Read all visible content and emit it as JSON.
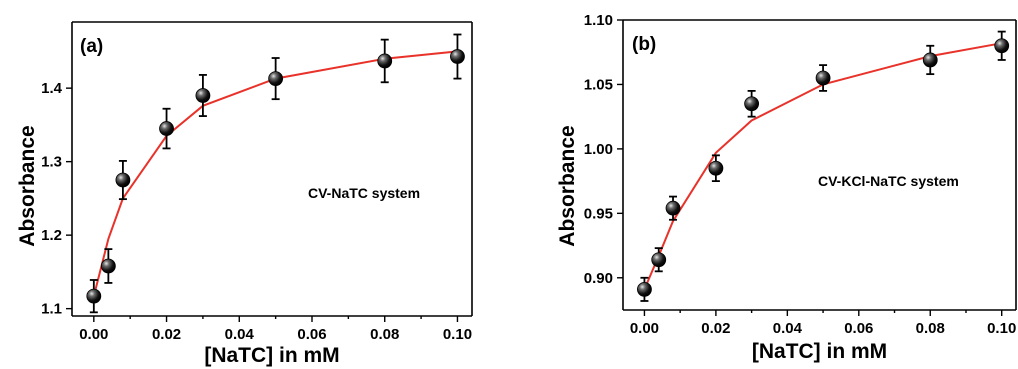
{
  "chart_data": [
    {
      "type": "scatter",
      "panel_label": "(a)",
      "annotation": "CV-NaTC system",
      "xlabel": "[NaTC] in mM",
      "ylabel": "Absorbance",
      "xlim": [
        -0.006,
        0.104
      ],
      "ylim": [
        1.09,
        1.49
      ],
      "xticks": [
        0.0,
        0.02,
        0.04,
        0.06,
        0.08,
        0.1
      ],
      "xtick_labels": [
        "0.00",
        "0.02",
        "0.04",
        "0.06",
        "0.08",
        "0.10"
      ],
      "yticks": [
        1.1,
        1.2,
        1.3,
        1.4
      ],
      "ytick_labels": [
        "1.1",
        "1.2",
        "1.3",
        "1.4"
      ],
      "grid": false,
      "fit_color": "#e8322a",
      "series": [
        {
          "x": [
            0.0,
            0.004,
            0.008,
            0.02,
            0.03,
            0.05,
            0.08,
            0.1
          ],
          "y": [
            1.117,
            1.158,
            1.275,
            1.345,
            1.39,
            1.413,
            1.437,
            1.443
          ],
          "error": [
            0.022,
            0.023,
            0.026,
            0.027,
            0.028,
            0.028,
            0.029,
            0.03
          ]
        }
      ],
      "fit": {
        "x": [
          0.0,
          0.004,
          0.008,
          0.02,
          0.03,
          0.05,
          0.08,
          0.1
        ],
        "y": [
          1.117,
          1.195,
          1.25,
          1.335,
          1.376,
          1.413,
          1.44,
          1.45
        ]
      }
    },
    {
      "type": "scatter",
      "panel_label": "(b)",
      "annotation": "CV-KCl-NaTC system",
      "xlabel": "[NaTC] in mM",
      "ylabel": "Absorbance",
      "xlim": [
        -0.006,
        0.104
      ],
      "ylim": [
        0.875,
        1.1
      ],
      "xticks": [
        0.0,
        0.02,
        0.04,
        0.06,
        0.08,
        0.1
      ],
      "xtick_labels": [
        "0.00",
        "0.02",
        "0.04",
        "0.06",
        "0.08",
        "0.10"
      ],
      "yticks": [
        0.9,
        0.95,
        1.0,
        1.05,
        1.1
      ],
      "ytick_labels": [
        "0.90",
        "0.95",
        "1.00",
        "1.05",
        "1.10"
      ],
      "grid": false,
      "fit_color": "#e8322a",
      "series": [
        {
          "x": [
            0.0,
            0.004,
            0.008,
            0.02,
            0.03,
            0.05,
            0.08,
            0.1
          ],
          "y": [
            0.891,
            0.914,
            0.954,
            0.985,
            1.035,
            1.055,
            1.069,
            1.08
          ],
          "error": [
            0.009,
            0.009,
            0.009,
            0.01,
            0.01,
            0.01,
            0.011,
            0.011
          ]
        }
      ],
      "fit": {
        "x": [
          0.0,
          0.004,
          0.008,
          0.02,
          0.03,
          0.05,
          0.08,
          0.1
        ],
        "y": [
          0.891,
          0.917,
          0.944,
          0.997,
          1.022,
          1.05,
          1.072,
          1.082
        ]
      }
    }
  ]
}
